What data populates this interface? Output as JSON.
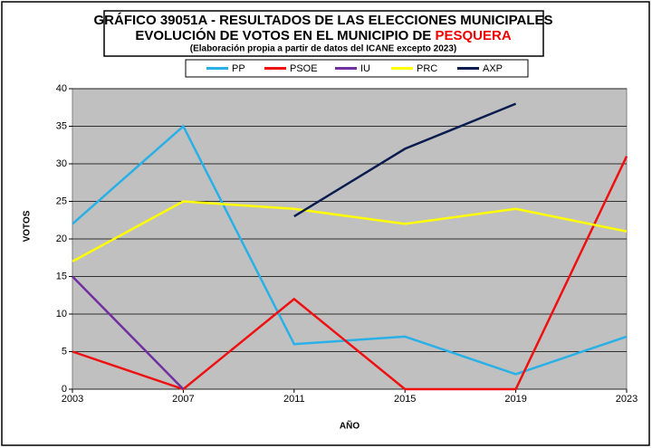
{
  "chart_data": {
    "type": "line",
    "title_line1": "GRÁFICO 39051A - RESULTADOS DE LAS ELECCIONES MUNICIPALES",
    "title_line2": "EVOLUCIÓN DE VOTOS EN EL MUNICIPIO DE",
    "title_highlight": "PESQUERA",
    "subtitle": "(Elaboración propia a partir de datos del ICANE excepto 2023)",
    "x_label": "AÑO",
    "y_label": "VOTOS",
    "x": [
      2003,
      2007,
      2011,
      2015,
      2019,
      2023
    ],
    "xlim": [
      2003,
      2023
    ],
    "xticks": [
      2003,
      2007,
      2011,
      2015,
      2019,
      2023
    ],
    "ylim": [
      0,
      40
    ],
    "yticks": [
      0,
      5,
      10,
      15,
      20,
      25,
      30,
      35,
      40
    ],
    "grid": true,
    "legend": "top",
    "series": [
      {
        "name": "PP",
        "color": "#29b0e6",
        "values": [
          22,
          35,
          6,
          7,
          2,
          7
        ]
      },
      {
        "name": "PSOE",
        "color": "#ee1111",
        "values": [
          5,
          0,
          12,
          0,
          0,
          31
        ]
      },
      {
        "name": "IU",
        "color": "#7030a0",
        "values": [
          15,
          0,
          null,
          null,
          null,
          null
        ]
      },
      {
        "name": "PRC",
        "color": "#ffff00",
        "values": [
          17,
          25,
          24,
          22,
          24,
          21
        ]
      },
      {
        "name": "AXP",
        "color": "#0b1c4e",
        "values": [
          null,
          null,
          23,
          32,
          38,
          null
        ]
      }
    ]
  }
}
